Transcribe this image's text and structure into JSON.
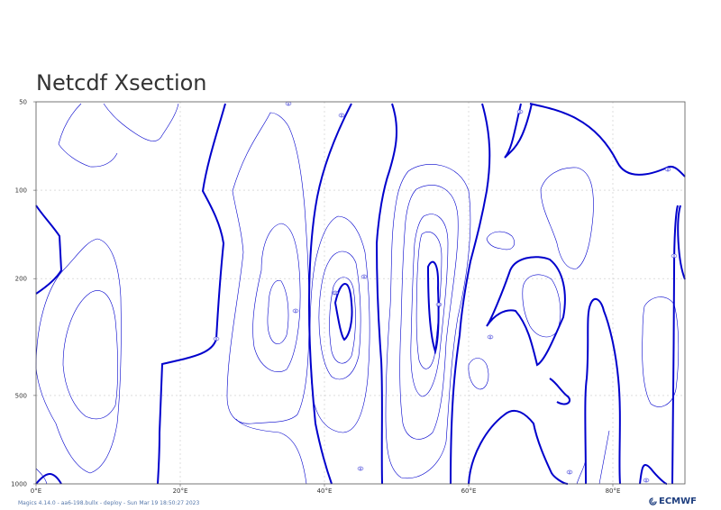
{
  "chart_data": {
    "type": "contour",
    "title": "Netcdf Xsection",
    "xlabel": "",
    "ylabel": "",
    "x_ticks": [
      "0°E",
      "20°E",
      "40°E",
      "60°E",
      "80°E"
    ],
    "y_ticks": [
      "50",
      "100",
      "200",
      "500",
      "1000"
    ],
    "xlim": [
      0,
      90
    ],
    "ylim": [
      1000,
      50
    ],
    "y_scale": "log",
    "grid": true,
    "contour_labels": [
      "0",
      "0",
      "0",
      "0",
      "0",
      "0",
      "0",
      "0",
      "0",
      "0",
      "0",
      "0",
      "10",
      "12"
    ],
    "line_color": "#0000cc"
  },
  "footer": {
    "text": "Magics 4.14.0 - aa6-198.bullx - deploy - Sun Mar 19 18:50:27 2023"
  },
  "logo": {
    "text": "ECMWF"
  }
}
